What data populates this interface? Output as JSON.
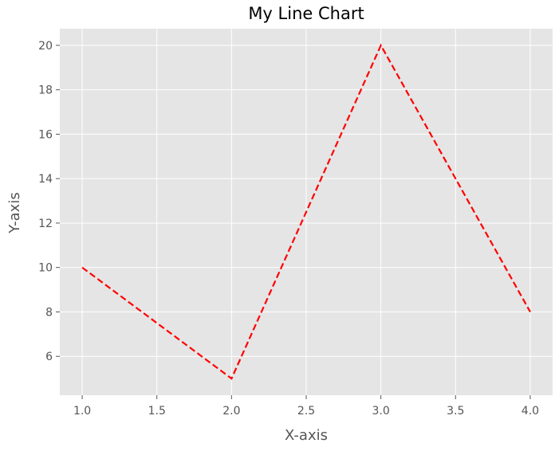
{
  "chart_data": {
    "type": "line",
    "title": "My Line Chart",
    "xlabel": "X-axis",
    "ylabel": "Y-axis",
    "x": [
      1.0,
      2.0,
      3.0,
      4.0
    ],
    "series": [
      {
        "values": [
          10,
          5,
          20,
          8
        ],
        "color": "#ff0000",
        "line_style": "dashed"
      }
    ],
    "xlim": [
      0.85,
      4.15
    ],
    "ylim": [
      4.25,
      20.75
    ],
    "xticks": [
      1.0,
      1.5,
      2.0,
      2.5,
      3.0,
      3.5,
      4.0
    ],
    "xtick_labels": [
      "1.0",
      "1.5",
      "2.0",
      "2.5",
      "3.0",
      "3.5",
      "4.0"
    ],
    "yticks": [
      6,
      8,
      10,
      12,
      14,
      16,
      18,
      20
    ],
    "ytick_labels": [
      "6",
      "8",
      "10",
      "12",
      "14",
      "16",
      "18",
      "20"
    ],
    "grid": true,
    "style": "ggplot",
    "background_color": "#e5e5e5",
    "grid_color": "#ffffff",
    "text_color": "#555555"
  }
}
